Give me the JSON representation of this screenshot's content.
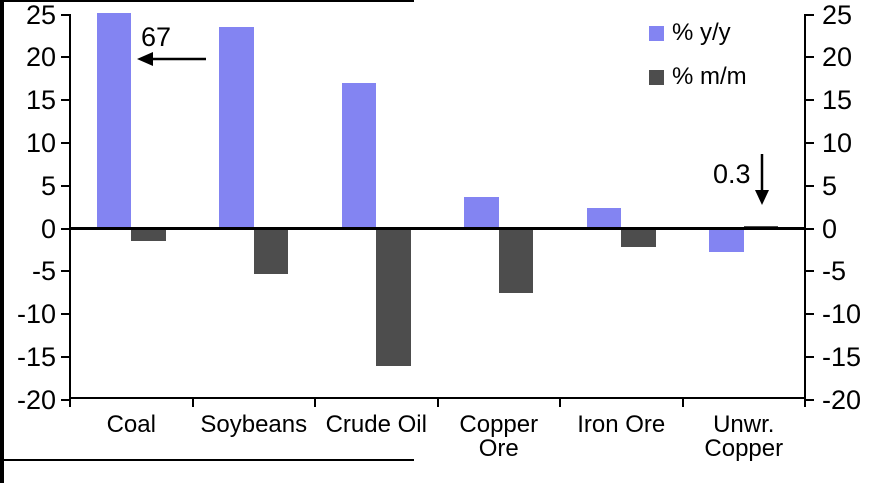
{
  "figure": {
    "background": "#FFFFFF",
    "frame_color": "#000000"
  },
  "chart_data": {
    "type": "bar",
    "categories": [
      "Coal",
      "Soybeans",
      "Crude Oil",
      "Copper\nOre",
      "Iron Ore",
      "Unwr.\nCopper"
    ],
    "series": [
      {
        "name": "% y/y",
        "color": "#8384F2",
        "values": [
          67,
          23.5,
          17,
          3.7,
          2.4,
          -2.7
        ]
      },
      {
        "name": "% m/m",
        "color": "#4D4D4D",
        "values": [
          -1.5,
          -5.3,
          -16.1,
          -7.5,
          -2.2,
          0.3
        ]
      }
    ],
    "title": "",
    "xlabel": "",
    "ylabel": "",
    "ylim": [
      -20,
      25
    ],
    "yticks": [
      25,
      20,
      15,
      10,
      5,
      0,
      -5,
      -10,
      -15,
      -20
    ],
    "dual_y_axis": true,
    "grid": false,
    "legend_position": "top-right",
    "annotations": [
      {
        "text": "67",
        "target": "Coal % y/y bar (truncated at top of axis)",
        "arrow": "left"
      },
      {
        "text": "0.3",
        "target": "Unwr. Copper % m/m bar",
        "arrow": "down"
      }
    ]
  }
}
